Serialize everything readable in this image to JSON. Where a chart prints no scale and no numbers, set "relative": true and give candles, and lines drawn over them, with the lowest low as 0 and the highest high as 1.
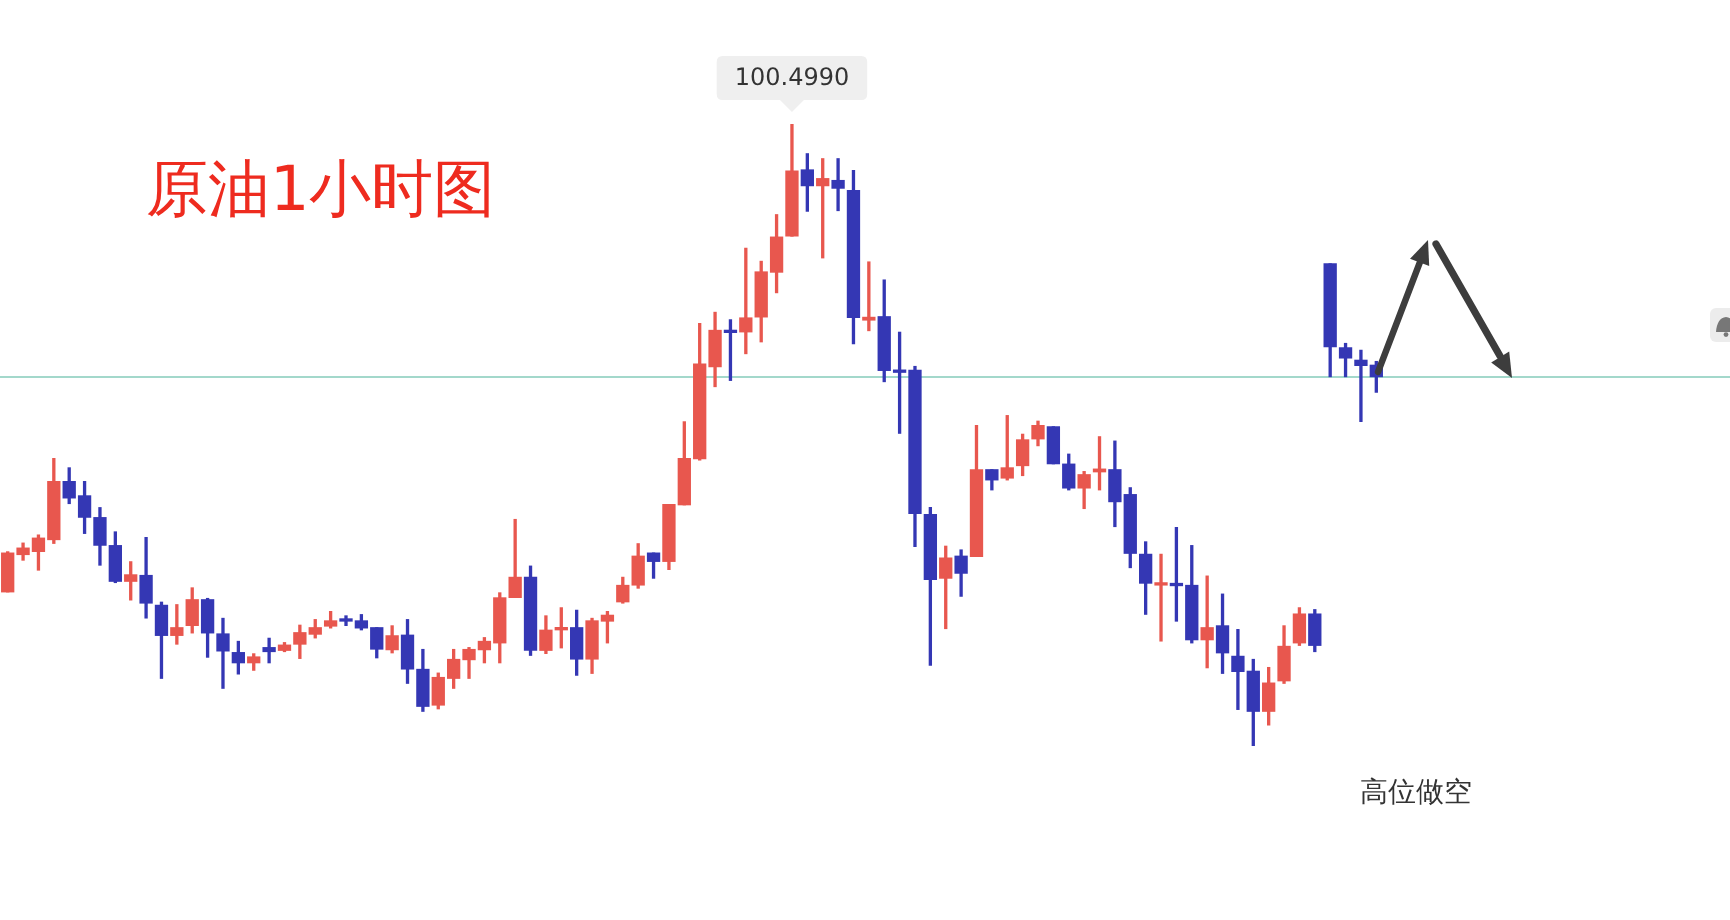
{
  "chart_data": {
    "type": "candlestick",
    "title": "原油1小时图",
    "relative": true,
    "categories": [
      null,
      null,
      null,
      null,
      null,
      null,
      null,
      null,
      null,
      null,
      null,
      null,
      null,
      null,
      null,
      null,
      null,
      null,
      null,
      null,
      null,
      null,
      null,
      null,
      null,
      null,
      null,
      null,
      null,
      null,
      null,
      null,
      null,
      null,
      null,
      null,
      null,
      null,
      null,
      null,
      null,
      null,
      null,
      null,
      null,
      null,
      null,
      null,
      null,
      null,
      null,
      null,
      null,
      null,
      null,
      null,
      null,
      null,
      null,
      null,
      null,
      null,
      null,
      null,
      null,
      null,
      null,
      null,
      null,
      null,
      null,
      null,
      null,
      null,
      null,
      null,
      null,
      null,
      null,
      null,
      null,
      null,
      null,
      null,
      null,
      null,
      null,
      null,
      null,
      null
    ],
    "ohlc": [
      [
        0.248,
        0.312,
        0.248,
        0.31
      ],
      [
        0.308,
        0.326,
        0.299,
        0.318
      ],
      [
        0.313,
        0.339,
        0.283,
        0.334
      ],
      [
        0.332,
        0.462,
        0.326,
        0.425
      ],
      [
        0.425,
        0.447,
        0.39,
        0.399
      ],
      [
        0.402,
        0.425,
        0.342,
        0.368
      ],
      [
        0.367,
        0.383,
        0.291,
        0.323
      ],
      [
        0.322,
        0.344,
        0.263,
        0.265
      ],
      [
        0.265,
        0.296,
        0.235,
        0.275
      ],
      [
        0.274,
        0.335,
        0.206,
        0.23
      ],
      [
        0.226,
        0.231,
        0.109,
        0.178
      ],
      [
        0.178,
        0.227,
        0.164,
        0.19
      ],
      [
        0.194,
        0.254,
        0.182,
        0.235
      ],
      [
        0.235,
        0.237,
        0.143,
        0.182
      ],
      [
        0.18,
        0.205,
        0.093,
        0.153
      ],
      [
        0.15,
        0.168,
        0.116,
        0.134
      ],
      [
        0.134,
        0.148,
        0.122,
        0.143
      ],
      [
        0.158,
        0.173,
        0.134,
        0.152
      ],
      [
        0.154,
        0.166,
        0.152,
        0.162
      ],
      [
        0.164,
        0.194,
        0.141,
        0.182
      ],
      [
        0.18,
        0.203,
        0.174,
        0.19
      ],
      [
        0.193,
        0.216,
        0.19,
        0.201
      ],
      [
        0.204,
        0.209,
        0.194,
        0.201
      ],
      [
        0.201,
        0.211,
        0.187,
        0.19
      ],
      [
        0.19,
        0.19,
        0.142,
        0.156
      ],
      [
        0.155,
        0.193,
        0.15,
        0.177
      ],
      [
        0.178,
        0.203,
        0.101,
        0.124
      ],
      [
        0.123,
        0.155,
        0.056,
        0.064
      ],
      [
        0.066,
        0.117,
        0.06,
        0.11
      ],
      [
        0.109,
        0.155,
        0.093,
        0.139
      ],
      [
        0.139,
        0.158,
        0.109,
        0.155
      ],
      [
        0.155,
        0.174,
        0.134,
        0.168
      ],
      [
        0.166,
        0.246,
        0.134,
        0.238
      ],
      [
        0.239,
        0.364,
        0.239,
        0.271
      ],
      [
        0.271,
        0.289,
        0.146,
        0.154
      ],
      [
        0.154,
        0.209,
        0.149,
        0.186
      ],
      [
        0.187,
        0.222,
        0.158,
        0.19
      ],
      [
        0.19,
        0.218,
        0.114,
        0.14
      ],
      [
        0.14,
        0.205,
        0.117,
        0.201
      ],
      [
        0.201,
        0.216,
        0.166,
        0.21
      ],
      [
        0.232,
        0.271,
        0.23,
        0.258
      ],
      [
        0.259,
        0.325,
        0.254,
        0.305
      ],
      [
        0.31,
        0.31,
        0.27,
        0.297
      ],
      [
        0.297,
        0.388,
        0.284,
        0.388
      ],
      [
        0.388,
        0.521,
        0.388,
        0.462
      ],
      [
        0.462,
        0.679,
        0.46,
        0.614
      ],
      [
        0.61,
        0.697,
        0.578,
        0.668
      ],
      [
        0.668,
        0.685,
        0.588,
        0.665
      ],
      [
        0.666,
        0.8,
        0.631,
        0.688
      ],
      [
        0.69,
        0.779,
        0.65,
        0.762
      ],
      [
        0.762,
        0.854,
        0.729,
        0.818
      ],
      [
        0.82,
        1,
        0.82,
        0.924
      ],
      [
        0.926,
        0.952,
        0.86,
        0.901
      ],
      [
        0.901,
        0.944,
        0.785,
        0.912
      ],
      [
        0.909,
        0.944,
        0.861,
        0.897
      ],
      [
        0.893,
        0.925,
        0.647,
        0.689
      ],
      [
        0.685,
        0.778,
        0.668,
        0.689
      ],
      [
        0.69,
        0.749,
        0.586,
        0.604
      ],
      [
        0.604,
        0.665,
        0.503,
        0.601
      ],
      [
        0.604,
        0.61,
        0.321,
        0.374
      ],
      [
        0.372,
        0.383,
        0.13,
        0.268
      ],
      [
        0.27,
        0.321,
        0.189,
        0.302
      ],
      [
        0.305,
        0.315,
        0.241,
        0.278
      ],
      [
        0.305,
        0.515,
        0.305,
        0.444
      ],
      [
        0.444,
        0.444,
        0.412,
        0.428
      ],
      [
        0.431,
        0.531,
        0.428,
        0.447
      ],
      [
        0.451,
        0.501,
        0.435,
        0.492
      ],
      [
        0.494,
        0.522,
        0.483,
        0.515
      ],
      [
        0.513,
        0.513,
        0.454,
        0.454
      ],
      [
        0.453,
        0.469,
        0.412,
        0.415
      ],
      [
        0.415,
        0.441,
        0.382,
        0.436
      ],
      [
        0.441,
        0.497,
        0.412,
        0.445
      ],
      [
        0.444,
        0.49,
        0.353,
        0.393
      ],
      [
        0.404,
        0.415,
        0.287,
        0.31
      ],
      [
        0.308,
        0.328,
        0.212,
        0.262
      ],
      [
        0.259,
        0.308,
        0.169,
        0.262
      ],
      [
        0.261,
        0.351,
        0.201,
        0.258
      ],
      [
        0.258,
        0.322,
        0.166,
        0.171
      ],
      [
        0.171,
        0.273,
        0.126,
        0.19
      ],
      [
        0.193,
        0.244,
        0.117,
        0.15
      ],
      [
        0.144,
        0.187,
        0.059,
        0.12
      ],
      [
        0.12,
        0.139,
        0,
        0.056
      ],
      [
        0.056,
        0.126,
        0.034,
        0.101
      ],
      [
        0.105,
        0.193,
        0.101,
        0.16
      ],
      [
        0.166,
        0.222,
        0.162,
        0.212
      ],
      [
        0.212,
        0.219,
        0.152,
        0.162
      ],
      [
        0.775,
        0.775,
        0.594,
        0.642
      ],
      [
        0.64,
        0.647,
        0.594,
        0.624
      ],
      [
        0.62,
        0.636,
        0.522,
        0.612
      ],
      [
        0.612,
        0.618,
        0.569,
        0.594
      ]
    ],
    "colors": [
      "#e8574e",
      "#e8574e",
      "#e8574e",
      "#e8574e",
      "#3437b4",
      "#3437b4",
      "#3437b4",
      "#3437b4",
      "#e8574e",
      "#3437b4",
      "#3437b4",
      "#e8574e",
      "#e8574e",
      "#3437b4",
      "#3437b4",
      "#3437b4",
      "#e8574e",
      "#3437b4",
      "#e8574e",
      "#e8574e",
      "#e8574e",
      "#e8574e",
      "#3437b4",
      "#3437b4",
      "#3437b4",
      "#e8574e",
      "#3437b4",
      "#3437b4",
      "#e8574e",
      "#e8574e",
      "#e8574e",
      "#e8574e",
      "#e8574e",
      "#e8574e",
      "#3437b4",
      "#e8574e",
      "#e8574e",
      "#3437b4",
      "#e8574e",
      "#e8574e",
      "#e8574e",
      "#e8574e",
      "#3437b4",
      "#e8574e",
      "#e8574e",
      "#e8574e",
      "#e8574e",
      "#3437b4",
      "#e8574e",
      "#e8574e",
      "#e8574e",
      "#e8574e",
      "#3437b4",
      "#e8574e",
      "#3437b4",
      "#3437b4",
      "#e8574e",
      "#3437b4",
      "#3437b4",
      "#3437b4",
      "#3437b4",
      "#e8574e",
      "#3437b4",
      "#e8574e",
      "#3437b4",
      "#e8574e",
      "#e8574e",
      "#e8574e",
      "#3437b4",
      "#3437b4",
      "#e8574e",
      "#e8574e",
      "#3437b4",
      "#3437b4",
      "#3437b4",
      "#e8574e",
      "#3437b4",
      "#3437b4",
      "#e8574e",
      "#3437b4",
      "#3437b4",
      "#3437b4",
      "#e8574e",
      "#e8574e",
      "#e8574e",
      "#3437b4",
      "#3437b4",
      "#3437b4",
      "#3437b4",
      "#3437b4"
    ],
    "ref_lines": [
      {
        "axis": "y",
        "value": 0.595,
        "color": "#a3d8cb"
      }
    ],
    "annotations": [
      {
        "text": "100.4990",
        "y": 1
      },
      "高位做空"
    ]
  }
}
